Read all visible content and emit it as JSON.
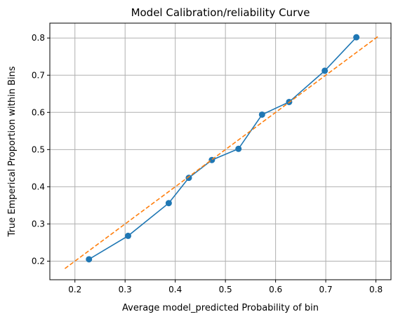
{
  "chart_data": {
    "type": "line",
    "title": "Model Calibration/reliability Curve",
    "xlabel": "Average model_predicted Probability of bin",
    "ylabel": "True Emperical Proportion within Bins",
    "xlim": [
      0.15,
      0.83
    ],
    "ylim": [
      0.15,
      0.84
    ],
    "xticks": [
      0.2,
      0.3,
      0.4,
      0.5,
      0.6,
      0.7,
      0.8
    ],
    "yticks": [
      0.2,
      0.3,
      0.4,
      0.5,
      0.6,
      0.7,
      0.8
    ],
    "grid": true,
    "series": [
      {
        "style": "solid-with-circle-markers",
        "color": "#1f77b4",
        "x": [
          0.228,
          0.306,
          0.387,
          0.427,
          0.473,
          0.526,
          0.573,
          0.627,
          0.698,
          0.761
        ],
        "y": [
          0.205,
          0.268,
          0.356,
          0.424,
          0.472,
          0.502,
          0.594,
          0.628,
          0.712,
          0.802
        ]
      },
      {
        "style": "dashed",
        "color": "#ff7f0e",
        "x": [
          0.18,
          0.805
        ],
        "y": [
          0.18,
          0.805
        ]
      }
    ]
  }
}
